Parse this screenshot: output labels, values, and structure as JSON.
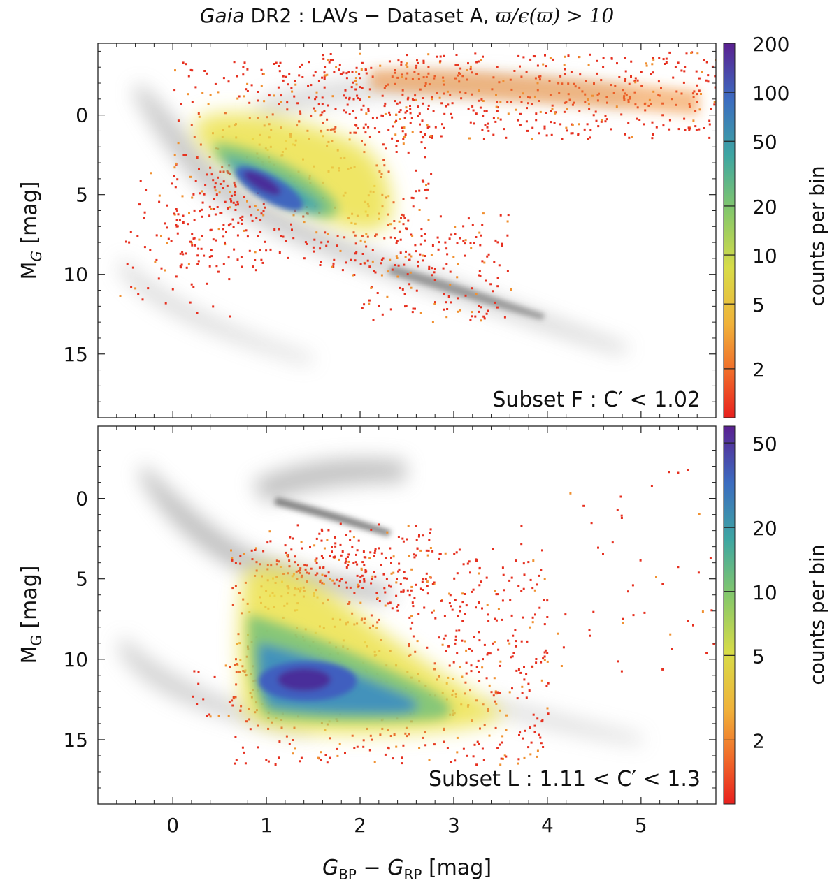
{
  "figure": {
    "title_parts": {
      "italic": "Gaia",
      "rest": " DR2 : LAVs  −  Dataset A, ",
      "math": "ϖ/ϵ(ϖ) > 10"
    },
    "xlabel_parts": {
      "a": "G",
      "a_sub": "BP",
      "mid": " − ",
      "b": "G",
      "b_sub": "RP",
      "unit": "  [mag]"
    },
    "ylabel_parts": {
      "m": "M",
      "m_sub": "G",
      "unit": "  [mag]"
    },
    "colorbar_label": "counts per bin"
  },
  "chart_data": [
    {
      "type": "heatmap",
      "panel": "top",
      "title": "Subset F :  C′ < 1.02",
      "xlabel": "G_BP − G_RP [mag]",
      "ylabel": "M_G [mag]",
      "xlim": [
        -0.8,
        5.8
      ],
      "ylim": [
        19.0,
        -4.5
      ],
      "xticks": [
        0,
        1,
        2,
        3,
        4,
        5
      ],
      "yticks": [
        0,
        5,
        10,
        15
      ],
      "colorbar": {
        "scale": "log",
        "range": [
          1,
          200
        ],
        "ticks": [
          2,
          5,
          10,
          20,
          50,
          100,
          200
        ],
        "label": "counts per bin"
      },
      "background": "gray density of full Dataset A",
      "density_features": [
        {
          "name": "main-sequence core",
          "x": 1.2,
          "y": 5.0,
          "peak_counts": 200
        },
        {
          "name": "red giant / AGB branch",
          "x_range": [
            1.5,
            5.8
          ],
          "y_range": [
            -2.5,
            0.5
          ],
          "peak_counts": 5
        },
        {
          "name": "white dwarf sequence",
          "x_range": [
            -0.6,
            1.5
          ],
          "y_range": [
            10,
            15
          ],
          "peak_counts": 2
        }
      ]
    },
    {
      "type": "heatmap",
      "panel": "bottom",
      "title": "Subset L :  1.11 < C′ < 1.3",
      "xlabel": "G_BP − G_RP [mag]",
      "ylabel": "M_G [mag]",
      "xlim": [
        -0.8,
        5.8
      ],
      "ylim": [
        19.0,
        -4.5
      ],
      "xticks": [
        0,
        1,
        2,
        3,
        4,
        5
      ],
      "yticks": [
        0,
        5,
        10,
        15
      ],
      "colorbar": {
        "scale": "log",
        "range": [
          1,
          60
        ],
        "ticks": [
          2,
          5,
          10,
          20,
          50
        ],
        "label": "counts per bin"
      },
      "background": "gray density of full Dataset A",
      "density_features": [
        {
          "name": "M-dwarf / lower main-sequence core",
          "x": 1.4,
          "y": 11.7,
          "peak_counts": 50
        },
        {
          "name": "triangular cloud",
          "x_range": [
            0.7,
            3.8
          ],
          "y_range": [
            3,
            15.5
          ],
          "peak_counts": 10
        }
      ]
    }
  ]
}
